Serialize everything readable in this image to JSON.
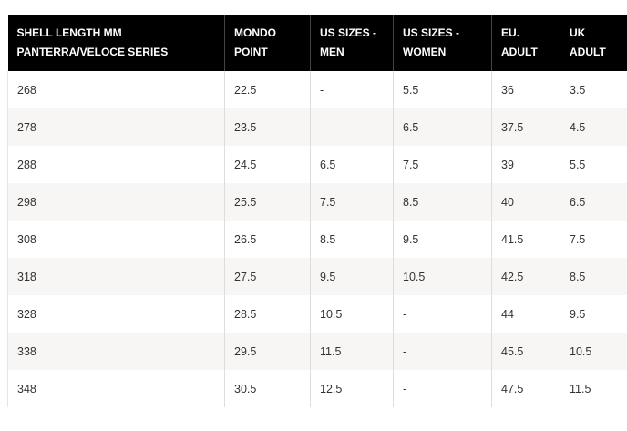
{
  "table": {
    "header": [
      [
        "SHELL LENGTH MM",
        "PANTERRA/VELOCE SERIES"
      ],
      [
        "MONDO",
        "POINT"
      ],
      [
        "US SIZES -",
        "MEN"
      ],
      [
        "US SIZES -",
        "WOMEN"
      ],
      [
        "EU.",
        "ADULT"
      ],
      [
        "UK",
        "ADULT"
      ]
    ],
    "rows": [
      [
        "268",
        "22.5",
        "-",
        "5.5",
        "36",
        "3.5"
      ],
      [
        "278",
        "23.5",
        "-",
        "6.5",
        "37.5",
        "4.5"
      ],
      [
        "288",
        "24.5",
        "6.5",
        "7.5",
        "39",
        "5.5"
      ],
      [
        "298",
        "25.5",
        "7.5",
        "8.5",
        "40",
        "6.5"
      ],
      [
        "308",
        "26.5",
        "8.5",
        "9.5",
        "41.5",
        "7.5"
      ],
      [
        "318",
        "27.5",
        "9.5",
        "10.5",
        "42.5",
        "8.5"
      ],
      [
        "328",
        "28.5",
        "10.5",
        "-",
        "44",
        "9.5"
      ],
      [
        "338",
        "29.5",
        "11.5",
        "-",
        "45.5",
        "10.5"
      ],
      [
        "348",
        "30.5",
        "12.5",
        "-",
        "47.5",
        "11.5"
      ]
    ]
  }
}
